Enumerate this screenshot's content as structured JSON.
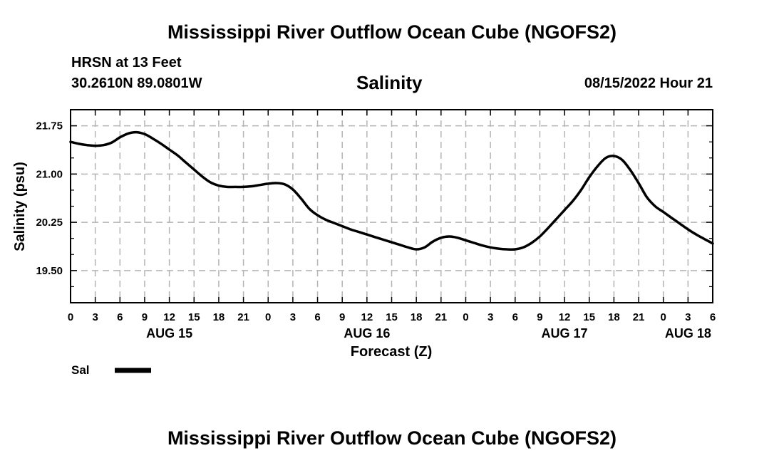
{
  "page": {
    "title_top": "Mississippi River Outflow Ocean Cube (NGOFS2)",
    "title_bottom": "Mississippi River Outflow Ocean Cube (NGOFS2)",
    "station_line1": "HRSN at 13 Feet",
    "station_line2": "30.2610N  89.0801W",
    "datetime": "08/15/2022 Hour 21"
  },
  "colors": {
    "line": "#000000",
    "grid": "#b4b4b4",
    "background": "#ffffff"
  },
  "chart_data": {
    "type": "line",
    "title": "Salinity",
    "xlabel": "Forecast (Z)",
    "ylabel": "Salinity (psu)",
    "xlim": [
      0,
      78
    ],
    "ylim": [
      19.0,
      22.0
    ],
    "x_unit": "hours from 08/15/2022 00Z",
    "y_ticks": [
      19.5,
      20.25,
      21.0,
      21.75
    ],
    "y_tick_labels": [
      "19.50",
      "20.25",
      "21.00",
      "21.75"
    ],
    "y_minor_ticks": [
      19.25,
      19.75,
      20.0,
      20.5,
      20.75,
      21.25,
      21.5
    ],
    "x_ticks": [
      0,
      3,
      6,
      9,
      12,
      15,
      18,
      21,
      24,
      27,
      30,
      33,
      36,
      39,
      42,
      45,
      48,
      51,
      54,
      57,
      60,
      63,
      66,
      69,
      72,
      75,
      78
    ],
    "x_tick_labels": [
      "0",
      "3",
      "6",
      "9",
      "12",
      "15",
      "18",
      "21",
      "0",
      "3",
      "6",
      "9",
      "12",
      "15",
      "18",
      "21",
      "0",
      "3",
      "6",
      "9",
      "12",
      "15",
      "18",
      "21",
      "0",
      "3",
      "6"
    ],
    "date_labels": [
      {
        "x": 12,
        "label": "AUG 15"
      },
      {
        "x": 36,
        "label": "AUG 16"
      },
      {
        "x": 60,
        "label": "AUG 17"
      },
      {
        "x": 75,
        "label": "AUG 18"
      }
    ],
    "legend": {
      "placement": "bottom-left",
      "entries": [
        "Sal"
      ]
    },
    "grid": true,
    "series": [
      {
        "name": "Sal",
        "x": [
          0,
          1,
          2,
          3,
          4,
          5,
          6,
          7,
          8,
          9,
          10,
          11,
          12,
          13,
          14,
          15,
          16,
          17,
          18,
          19,
          20,
          21,
          22,
          23,
          24,
          25,
          26,
          27,
          28,
          29,
          30,
          31,
          32,
          33,
          34,
          35,
          36,
          37,
          38,
          39,
          40,
          41,
          42,
          43,
          44,
          45,
          46,
          47,
          48,
          49,
          50,
          51,
          52,
          53,
          54,
          55,
          56,
          57,
          58,
          59,
          60,
          61,
          62,
          63,
          64,
          65,
          66,
          67,
          68,
          69,
          70,
          71,
          72,
          73,
          74,
          75,
          76,
          77,
          78
        ],
        "values": [
          21.5,
          21.47,
          21.45,
          21.44,
          21.45,
          21.49,
          21.57,
          21.63,
          21.65,
          21.62,
          21.55,
          21.47,
          21.38,
          21.29,
          21.18,
          21.07,
          20.96,
          20.87,
          20.82,
          20.8,
          20.8,
          20.8,
          20.81,
          20.83,
          20.85,
          20.86,
          20.84,
          20.76,
          20.62,
          20.46,
          20.36,
          20.29,
          20.24,
          20.19,
          20.14,
          20.1,
          20.06,
          20.02,
          19.98,
          19.94,
          19.9,
          19.86,
          19.83,
          19.86,
          19.95,
          20.01,
          20.03,
          20.01,
          19.97,
          19.93,
          19.89,
          19.86,
          19.84,
          19.83,
          19.83,
          19.86,
          19.93,
          20.03,
          20.16,
          20.3,
          20.44,
          20.58,
          20.75,
          20.95,
          21.12,
          21.25,
          21.28,
          21.22,
          21.06,
          20.86,
          20.64,
          20.5,
          20.41,
          20.32,
          20.23,
          20.14,
          20.06,
          19.99,
          19.92
        ]
      }
    ]
  }
}
